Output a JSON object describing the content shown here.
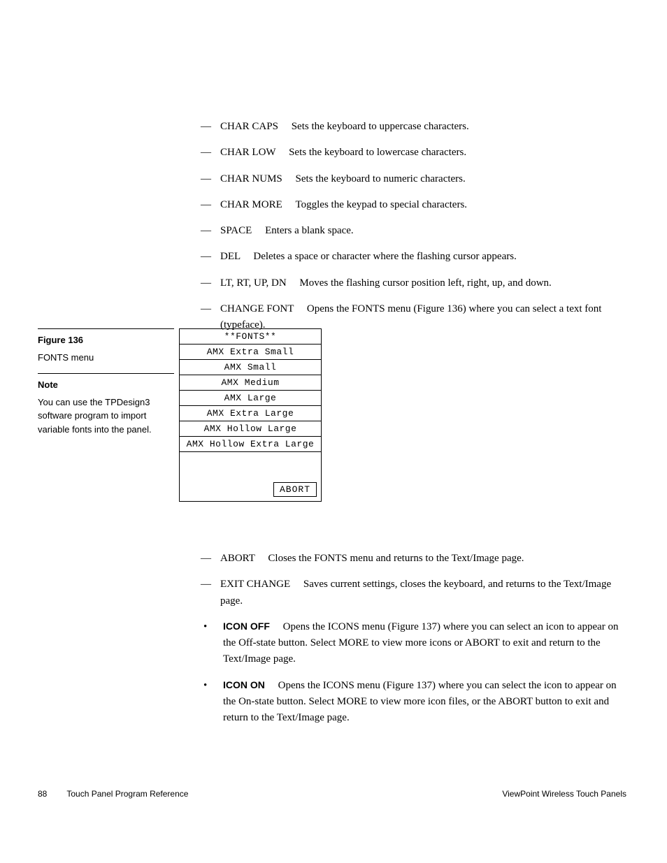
{
  "dash_items": [
    {
      "term": "CHAR CAPS",
      "desc": "Sets the keyboard to uppercase characters."
    },
    {
      "term": "CHAR LOW",
      "desc": "Sets the keyboard to lowercase characters."
    },
    {
      "term": "CHAR NUMS",
      "desc": "Sets the keyboard to numeric characters."
    },
    {
      "term": "CHAR MORE",
      "desc": "Toggles the keypad to special characters."
    },
    {
      "term": "SPACE",
      "desc": "Enters a blank space."
    },
    {
      "term": "DEL",
      "desc": "Deletes a space or character where the flashing cursor appears."
    },
    {
      "term": "LT, RT, UP, DN",
      "desc": "Moves the flashing cursor position left, right, up, and down."
    },
    {
      "term": "CHANGE FONT",
      "desc": "Opens the FONTS menu (Figure 136) where you can select a text font (typeface)."
    }
  ],
  "sidebar": {
    "fig_head": "Figure 136",
    "fig_text": "FONTS menu",
    "note_head": "Note",
    "note_text": "You can use the TPDesign3 software program to import variable fonts into the panel."
  },
  "fonts_menu": {
    "title": "**FONTS**",
    "rows": [
      "AMX Extra Small",
      "AMX Small",
      "AMX Medium",
      "AMX Large",
      "AMX Extra Large",
      "AMX Hollow Large",
      "AMX Hollow Extra Large"
    ],
    "abort": "ABORT"
  },
  "lower_dash": [
    {
      "term": "ABORT",
      "desc": "Closes the FONTS menu and returns to the Text/Image page."
    },
    {
      "term": "EXIT CHANGE",
      "desc": "Saves current settings, closes the keyboard, and returns to the Text/Image page."
    }
  ],
  "bullets": [
    {
      "term": "ICON OFF",
      "desc": "Opens the ICONS menu (Figure 137) where you can select an icon to appear on the Off-state button. Select MORE to view more icons or ABORT to exit and return to the Text/Image page."
    },
    {
      "term": "ICON ON",
      "desc": "Opens the ICONS menu (Figure 137) where you can select the icon to appear on the On-state button. Select MORE to view more icon files, or the ABORT button to exit and return to the Text/Image page."
    }
  ],
  "footer": {
    "page": "88",
    "section": "Touch Panel Program Reference",
    "product": "ViewPoint Wireless Touch Panels"
  }
}
